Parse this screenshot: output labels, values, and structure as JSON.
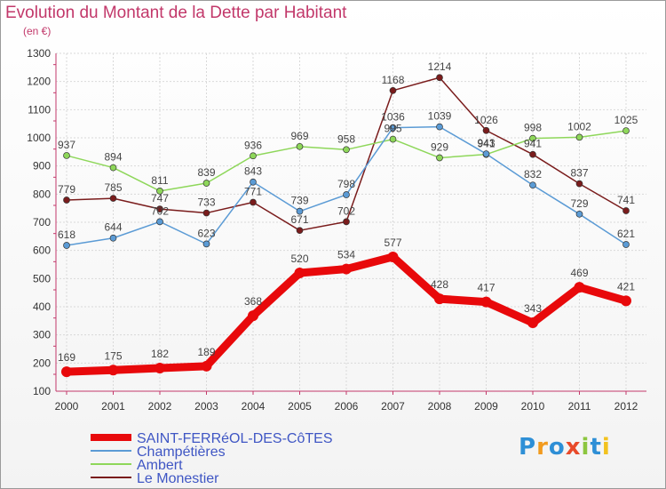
{
  "chart_data": {
    "type": "line",
    "title": "Evolution du Montant de la Dette par Habitant",
    "subtitle": "(en €)",
    "x": [
      "2000",
      "2001",
      "2002",
      "2003",
      "2004",
      "2005",
      "2006",
      "2007",
      "2008",
      "2009",
      "2010",
      "2011",
      "2012"
    ],
    "ylim": [
      100,
      1300
    ],
    "yticks": [
      100,
      200,
      300,
      400,
      500,
      600,
      700,
      800,
      900,
      1000,
      1100,
      1200,
      1300
    ],
    "grid": true,
    "legend_position": "bottom-left",
    "series": [
      {
        "name": "SAINT-FERRéOL-DES-CôTES",
        "color": "#e8090b",
        "values": [
          169,
          175,
          182,
          189,
          368,
          520,
          534,
          577,
          428,
          417,
          343,
          469,
          421
        ]
      },
      {
        "name": "Champétières",
        "color": "#5b9bd5",
        "values": [
          618,
          644,
          702,
          623,
          843,
          739,
          798,
          1036,
          1039,
          943,
          832,
          729,
          621
        ]
      },
      {
        "name": "Ambert",
        "color": "#8ed75a",
        "values": [
          937,
          894,
          811,
          839,
          936,
          969,
          958,
          995,
          929,
          941,
          998,
          1002,
          1025
        ]
      },
      {
        "name": "Le Monestier",
        "color": "#7a1c1c",
        "values": [
          779,
          785,
          747,
          733,
          771,
          671,
          702,
          1168,
          1214,
          1026,
          941,
          837,
          741
        ]
      }
    ]
  },
  "logo": {
    "text": "Proxiti",
    "colors": [
      "#2e8fd6",
      "#f29b1f",
      "#2e8fd6",
      "#e84a2a",
      "#8cc63f",
      "#2e8fd6",
      "#f2c21f"
    ]
  }
}
